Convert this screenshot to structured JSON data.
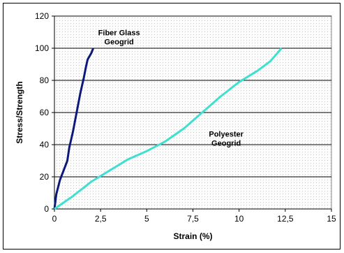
{
  "chart_data": {
    "type": "line",
    "xlabel": "Strain (%)",
    "ylabel": "Stress/Strength",
    "xlim": [
      0,
      15
    ],
    "ylim": [
      0,
      120
    ],
    "x_ticks": [
      "0",
      "2,5",
      "5",
      "7,5",
      "10",
      "12,5",
      "15"
    ],
    "y_ticks": [
      "0",
      "20",
      "40",
      "60",
      "80",
      "100",
      "120"
    ],
    "grid": "horizontal",
    "plot_background": "dotted light gray",
    "series": [
      {
        "name": "Fiber Glass Geogrid",
        "color": "#0b1a7a",
        "points": [
          [
            0,
            0
          ],
          [
            0.1,
            9
          ],
          [
            0.3,
            18
          ],
          [
            0.5,
            24
          ],
          [
            0.7,
            30
          ],
          [
            0.8,
            38
          ],
          [
            1.0,
            48
          ],
          [
            1.2,
            60
          ],
          [
            1.4,
            72
          ],
          [
            1.6,
            82
          ],
          [
            1.7,
            88
          ],
          [
            1.8,
            93
          ],
          [
            2.0,
            97
          ],
          [
            2.1,
            100
          ]
        ]
      },
      {
        "name": "Polyester Geogrid",
        "color": "#40e0d0",
        "points": [
          [
            0,
            0
          ],
          [
            1.0,
            8
          ],
          [
            2.0,
            17
          ],
          [
            3.0,
            24
          ],
          [
            4.0,
            31
          ],
          [
            5.0,
            36
          ],
          [
            6.0,
            42
          ],
          [
            7.0,
            50
          ],
          [
            8.0,
            60
          ],
          [
            9.0,
            70
          ],
          [
            10.0,
            79
          ],
          [
            11.0,
            86
          ],
          [
            11.7,
            92
          ],
          [
            12.0,
            96
          ],
          [
            12.3,
            100
          ]
        ]
      }
    ],
    "annotations": [
      {
        "lines": [
          "Fiber Glass",
          "Geogrid"
        ],
        "at": [
          3.5,
          108
        ]
      },
      {
        "lines": [
          "Polyester",
          "Geogrid"
        ],
        "at": [
          9.3,
          45
        ]
      }
    ]
  }
}
